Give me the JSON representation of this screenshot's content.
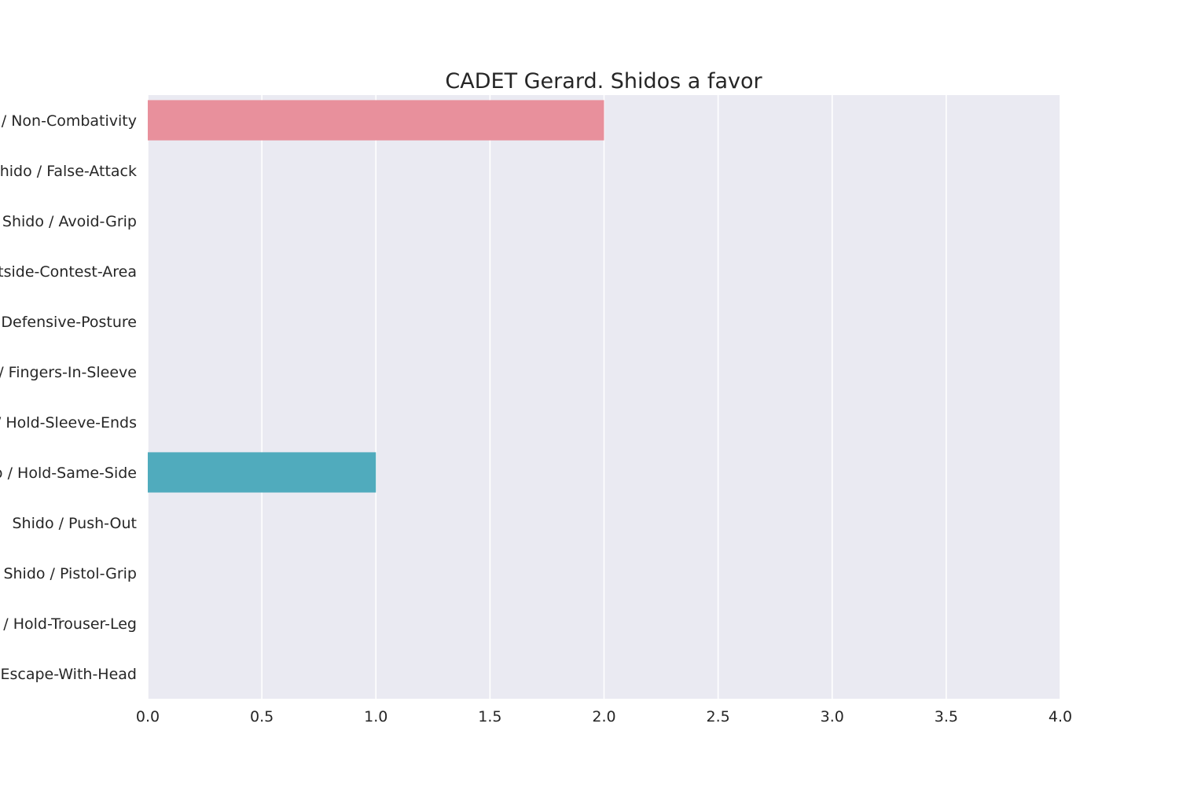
{
  "chart_data": {
    "type": "bar",
    "orientation": "horizontal",
    "title": "CADET Gerard. Shidos a favor",
    "xlabel": "",
    "ylabel": "",
    "xlim": [
      0,
      4
    ],
    "xticks": [
      "0.0",
      "0.5",
      "1.0",
      "1.5",
      "2.0",
      "2.5",
      "3.0",
      "3.5",
      "4.0"
    ],
    "grid": true,
    "categories": [
      "Shido / Non-Combativity",
      "Shido / False-Attack",
      "Shido / Avoid-Grip",
      "Shido / Outside-Contest-Area",
      "Shido / Defensive-Posture",
      "Shido / Fingers-In-Sleeve",
      "Shido / Hold-Sleeve-Ends",
      "Shido / Hold-Same-Side",
      "Shido / Push-Out",
      "Shido / Pistol-Grip",
      "Shido / Hold-Trouser-Leg",
      "Shido / Escape-With-Head"
    ],
    "values": [
      2,
      0,
      0,
      0,
      0,
      0,
      0,
      1,
      0,
      0,
      0,
      0
    ],
    "colors": [
      "#e8909c",
      "#e29a6a",
      "#c9a54b",
      "#a6b048",
      "#72b856",
      "#4fba8c",
      "#4eb8a8",
      "#50abbd",
      "#5aa4d6",
      "#9a9be6",
      "#d08fe3",
      "#e58dc4"
    ],
    "background_color": "#eaeaf2",
    "grid_color": "#ffffff"
  }
}
